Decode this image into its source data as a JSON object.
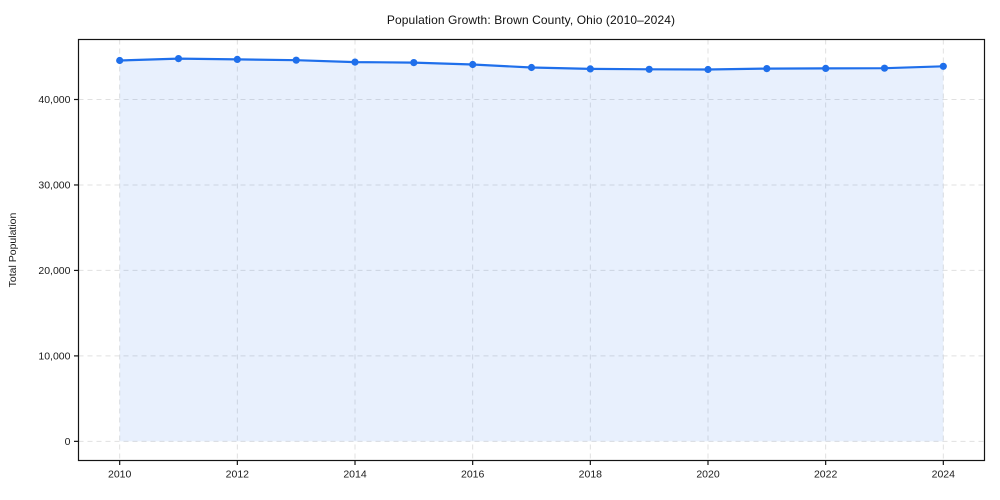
{
  "title": "Population Growth: Brown County, Ohio (2010–2024)",
  "chart_data": {
    "type": "line",
    "title": "Population Growth: Brown County, Ohio (2010–2024)",
    "xlabel": "",
    "ylabel": "Total Population",
    "x": [
      2010,
      2011,
      2012,
      2013,
      2014,
      2015,
      2016,
      2017,
      2018,
      2019,
      2020,
      2021,
      2022,
      2023,
      2024
    ],
    "series": [
      {
        "name": "Total Population",
        "values": [
          44560,
          44780,
          44690,
          44600,
          44370,
          44320,
          44090,
          43740,
          43580,
          43530,
          43510,
          43620,
          43640,
          43660,
          43890
        ]
      }
    ],
    "xticks": [
      2010,
      2012,
      2014,
      2016,
      2018,
      2020,
      2022,
      2024
    ],
    "xtick_labels": [
      "2010",
      "2012",
      "2014",
      "2016",
      "2018",
      "2020",
      "2022",
      "2024"
    ],
    "yticks": [
      0,
      10000,
      20000,
      30000,
      40000
    ],
    "ytick_labels": [
      "0",
      "10,000",
      "20,000",
      "30,000",
      "40,000"
    ],
    "xlim": [
      2009.3,
      2024.7
    ],
    "ylim": [
      -2240,
      47020
    ],
    "grid": true,
    "grid_style": "dashed",
    "legend": false,
    "marker": "circle",
    "area_fill": true,
    "colors": {
      "line": "#1f6feb",
      "fill": "rgba(31,111,235,0.10)",
      "grid": "#e0e0e0",
      "spine": "#141414",
      "text": "#1a1a1a"
    }
  }
}
